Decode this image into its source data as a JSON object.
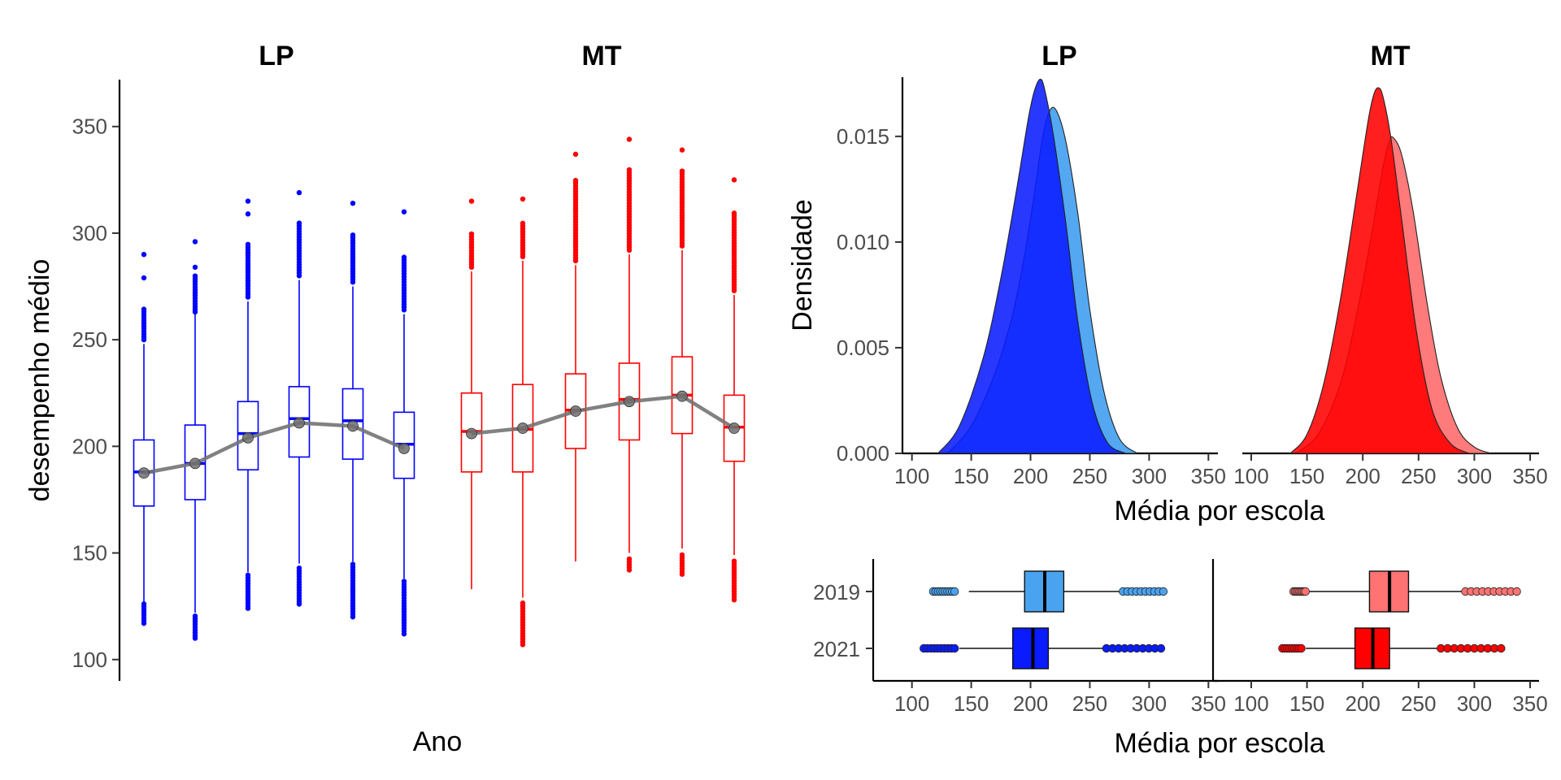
{
  "colors": {
    "lp_main": "#0000ff",
    "mt_main": "#ff0000",
    "lp_2019": "#4aa3f0",
    "lp_2021": "#0a1cff",
    "mt_2019": "#ff7373",
    "mt_2021": "#ff0000",
    "trend": "#737373"
  },
  "chart_data": [
    {
      "type": "box",
      "panels": [
        "LP",
        "MT"
      ],
      "xlabel": "Ano",
      "ylabel": "desempenho médio",
      "ylim": [
        90,
        372
      ],
      "yticks": [
        100,
        150,
        200,
        250,
        300,
        350
      ],
      "series": [
        {
          "name": "LP",
          "boxes": [
            {
              "q1": 172,
              "median": 188,
              "q3": 203,
              "lower": 125,
              "upper": 248,
              "mean": 187.5,
              "out_low": [
                117,
                127
              ],
              "out_high": [
                250,
                265,
                279,
                290
              ]
            },
            {
              "q1": 175,
              "median": 192,
              "q3": 210,
              "lower": 122,
              "upper": 262,
              "mean": 192,
              "out_low": [
                110,
                121
              ],
              "out_high": [
                263,
                280,
                284,
                296
              ]
            },
            {
              "q1": 189,
              "median": 206,
              "q3": 221,
              "lower": 141,
              "upper": 268,
              "mean": 204,
              "out_low": [
                124,
                140
              ],
              "out_high": [
                270,
                295,
                309,
                315
              ]
            },
            {
              "q1": 195,
              "median": 213,
              "q3": 228,
              "lower": 145,
              "upper": 278,
              "mean": 211,
              "out_low": [
                126,
                144
              ],
              "out_high": [
                280,
                305,
                319
              ]
            },
            {
              "q1": 194,
              "median": 212,
              "q3": 227,
              "lower": 146,
              "upper": 275,
              "mean": 209.5,
              "out_low": [
                120,
                145
              ],
              "out_high": [
                277,
                300,
                314
              ]
            },
            {
              "q1": 185,
              "median": 201,
              "q3": 216,
              "lower": 138,
              "upper": 262,
              "mean": 199,
              "out_low": [
                112,
                137
              ],
              "out_high": [
                264,
                290,
                310
              ]
            }
          ]
        },
        {
          "name": "MT",
          "boxes": [
            {
              "q1": 188,
              "median": 207,
              "q3": 225,
              "lower": 133,
              "upper": 282,
              "mean": 206,
              "out_low": [],
              "out_high": [
                284,
                300,
                315
              ]
            },
            {
              "q1": 188,
              "median": 208,
              "q3": 229,
              "lower": 129,
              "upper": 287,
              "mean": 208.5,
              "out_low": [
                107,
                127
              ],
              "out_high": [
                289,
                305,
                316
              ]
            },
            {
              "q1": 199,
              "median": 217,
              "q3": 234,
              "lower": 146,
              "upper": 285,
              "mean": 216.5,
              "out_low": [],
              "out_high": [
                287,
                325,
                337
              ]
            },
            {
              "q1": 203,
              "median": 222,
              "q3": 239,
              "lower": 150,
              "upper": 290,
              "mean": 221,
              "out_low": [
                142,
                148
              ],
              "out_high": [
                292,
                330,
                344
              ]
            },
            {
              "q1": 206,
              "median": 224,
              "q3": 242,
              "lower": 152,
              "upper": 292,
              "mean": 223.5,
              "out_low": [
                140,
                150
              ],
              "out_high": [
                294,
                330,
                339
              ]
            },
            {
              "q1": 193,
              "median": 209,
              "q3": 224,
              "lower": 149,
              "upper": 271,
              "mean": 208.5,
              "out_low": [
                128,
                147
              ],
              "out_high": [
                273,
                310,
                325
              ]
            }
          ]
        }
      ]
    },
    {
      "type": "area",
      "panels": [
        "LP",
        "MT"
      ],
      "xlabel": "Média por escola",
      "ylabel": "Densidade",
      "xlim": [
        92,
        358
      ],
      "ylim": [
        0,
        0.0178
      ],
      "xticks": [
        100,
        150,
        200,
        250,
        300,
        350
      ],
      "yticks": [
        "0.000",
        "0.005",
        "0.010",
        "0.015"
      ],
      "series": [
        {
          "panel": "LP",
          "year": "2019",
          "x": [
            130,
            150,
            170,
            185,
            195,
            203,
            210,
            216,
            222,
            230,
            240,
            250,
            262,
            275,
            290
          ],
          "y": [
            0.0,
            0.0013,
            0.0038,
            0.0066,
            0.0094,
            0.0122,
            0.0149,
            0.0162,
            0.0162,
            0.0147,
            0.0113,
            0.0068,
            0.0029,
            0.0007,
            0.0
          ]
        },
        {
          "panel": "LP",
          "year": "2021",
          "x": [
            122,
            140,
            160,
            175,
            188,
            198,
            203,
            208,
            212,
            220,
            230,
            240,
            252,
            265,
            280
          ],
          "y": [
            0.0,
            0.0013,
            0.0045,
            0.0083,
            0.0124,
            0.0158,
            0.0171,
            0.0177,
            0.0172,
            0.0148,
            0.0108,
            0.0062,
            0.0024,
            0.0005,
            0.0
          ]
        },
        {
          "panel": "MT",
          "year": "2019",
          "x": [
            140,
            160,
            180,
            195,
            208,
            218,
            224,
            228,
            235,
            245,
            258,
            270,
            285,
            300,
            315
          ],
          "y": [
            0.0,
            0.0009,
            0.0033,
            0.0067,
            0.0104,
            0.0135,
            0.0148,
            0.0149,
            0.0141,
            0.0115,
            0.007,
            0.0036,
            0.0012,
            0.0003,
            0.0
          ]
        },
        {
          "panel": "MT",
          "year": "2021",
          "x": [
            135,
            150,
            165,
            180,
            195,
            205,
            210,
            214,
            218,
            225,
            235,
            248,
            262,
            278,
            295
          ],
          "y": [
            0.0,
            0.0009,
            0.0033,
            0.0073,
            0.0124,
            0.0158,
            0.017,
            0.0173,
            0.0169,
            0.015,
            0.011,
            0.0058,
            0.0021,
            0.0005,
            0.0
          ]
        }
      ]
    },
    {
      "type": "box",
      "orientation": "horizontal",
      "panels": [
        "LP",
        "MT"
      ],
      "xlabel": "Média por escola",
      "xlim": [
        92,
        358
      ],
      "xticks": [
        100,
        150,
        200,
        250,
        300,
        350
      ],
      "categories": [
        "2019",
        "2021"
      ],
      "series": [
        {
          "panel": "LP",
          "year": "2019",
          "q1": 195,
          "median": 212,
          "q3": 228,
          "lower": 148,
          "upper": 276,
          "out_low": [
            118,
            136
          ],
          "out_high": [
            278,
            312
          ]
        },
        {
          "panel": "LP",
          "year": "2021",
          "q1": 185,
          "median": 202,
          "q3": 215,
          "lower": 140,
          "upper": 262,
          "out_low": [
            110,
            136
          ],
          "out_high": [
            264,
            310
          ]
        },
        {
          "panel": "MT",
          "year": "2019",
          "q1": 206,
          "median": 224,
          "q3": 241,
          "lower": 152,
          "upper": 290,
          "out_low": [
            138,
            150
          ],
          "out_high": [
            292,
            338
          ]
        },
        {
          "panel": "MT",
          "year": "2021",
          "q1": 193,
          "median": 209,
          "q3": 224,
          "lower": 149,
          "upper": 268,
          "out_low": [
            128,
            147
          ],
          "out_high": [
            270,
            324
          ]
        }
      ]
    }
  ]
}
